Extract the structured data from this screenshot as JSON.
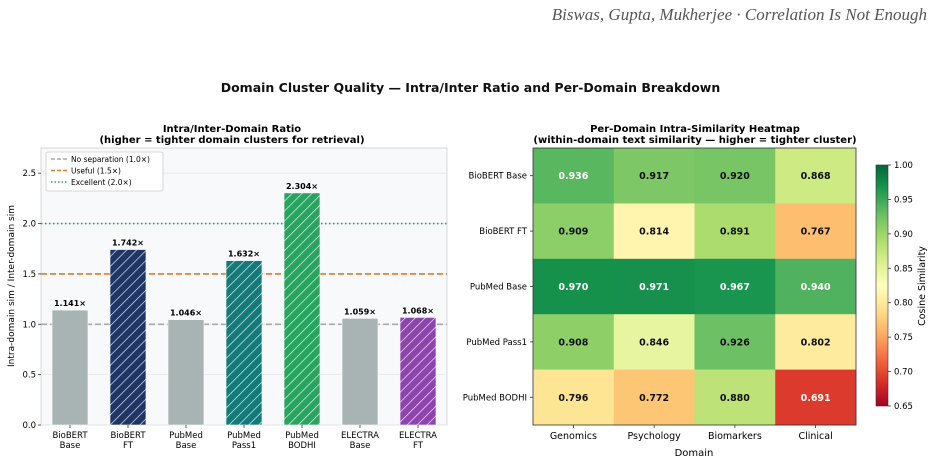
{
  "header": {
    "authors": "Biswas, Gupta, Mukherjee",
    "separator": "·",
    "running_title": "Correlation Is Not Enough"
  },
  "suptitle": "Domain Cluster Quality — Intra/Inter Ratio and Per-Domain Breakdown",
  "chart_data": [
    {
      "type": "bar",
      "title_lines": [
        "Intra/Inter-Domain Ratio",
        "(higher = tighter domain clusters for retrieval)"
      ],
      "ylabel": "Intra-domain sim / Inter-domain sim",
      "ylim": [
        0,
        2.75
      ],
      "yticks": [
        "0.0",
        "0.5",
        "1.0",
        "1.5",
        "2.0",
        "2.5"
      ],
      "ytick_values": [
        0,
        0.5,
        1.0,
        1.5,
        2.0,
        2.5
      ],
      "grid": true,
      "categories": [
        [
          "BioBERT",
          "Base"
        ],
        [
          "BioBERT",
          "FT"
        ],
        [
          "PubMed",
          "Base"
        ],
        [
          "PubMed",
          "Pass1"
        ],
        [
          "PubMed",
          "BODHI"
        ],
        [
          "ELECTRA",
          "Base"
        ],
        [
          "ELECTRA",
          "FT"
        ]
      ],
      "values": [
        1.141,
        1.742,
        1.046,
        1.632,
        2.304,
        1.059,
        1.068
      ],
      "value_labels": [
        "1.141×",
        "1.742×",
        "1.046×",
        "1.632×",
        "2.304×",
        "1.059×",
        "1.068×"
      ],
      "bar_colors": [
        "#a8b4b4",
        "#1e3566",
        "#a8b4b4",
        "#127a78",
        "#27a55e",
        "#a8b4b4",
        "#8e44ad"
      ],
      "hatched": [
        false,
        true,
        false,
        true,
        true,
        false,
        true
      ],
      "reference_lines": [
        {
          "label": "No separation (1.0×)",
          "value": 1.0,
          "color": "#aaaaaa",
          "style": "dashed"
        },
        {
          "label": "Useful (1.5×)",
          "value": 1.5,
          "color": "#e07b28",
          "style": "dashed"
        },
        {
          "label": "Excellent (2.0×)",
          "value": 2.0,
          "color": "#2ea84f",
          "style": "dotted"
        }
      ],
      "legend_position": "upper-left"
    },
    {
      "type": "heatmap",
      "title_lines": [
        "Per-Domain Intra-Similarity Heatmap",
        "(within-domain text similarity — higher = tighter cluster)"
      ],
      "xlabel": "Domain",
      "x": [
        "Genomics",
        "Psychology",
        "Biomarkers",
        "Clinical"
      ],
      "y": [
        "BioBERT Base",
        "BioBERT FT",
        "PubMed Base",
        "PubMed Pass1",
        "PubMed BODHI"
      ],
      "values": [
        [
          0.936,
          0.917,
          0.92,
          0.868
        ],
        [
          0.909,
          0.814,
          0.891,
          0.767
        ],
        [
          0.97,
          0.971,
          0.967,
          0.94
        ],
        [
          0.908,
          0.846,
          0.926,
          0.802
        ],
        [
          0.796,
          0.772,
          0.88,
          0.691
        ]
      ],
      "cell_labels": [
        [
          "0.936",
          "0.917",
          "0.920",
          "0.868"
        ],
        [
          "0.909",
          "0.814",
          "0.891",
          "0.767"
        ],
        [
          "0.970",
          "0.971",
          "0.967",
          "0.940"
        ],
        [
          "0.908",
          "0.846",
          "0.926",
          "0.802"
        ],
        [
          "0.796",
          "0.772",
          "0.880",
          "0.691"
        ]
      ],
      "colormap": "RdYlGn",
      "vmin": 0.65,
      "vmax": 1.0,
      "colorbar_label": "Cosine Similarity",
      "colorbar_ticks": [
        "0.65",
        "0.70",
        "0.75",
        "0.80",
        "0.85",
        "0.90",
        "0.95",
        "1.00"
      ],
      "colorbar_tick_values": [
        0.65,
        0.7,
        0.75,
        0.8,
        0.85,
        0.9,
        0.95,
        1.0
      ]
    }
  ]
}
